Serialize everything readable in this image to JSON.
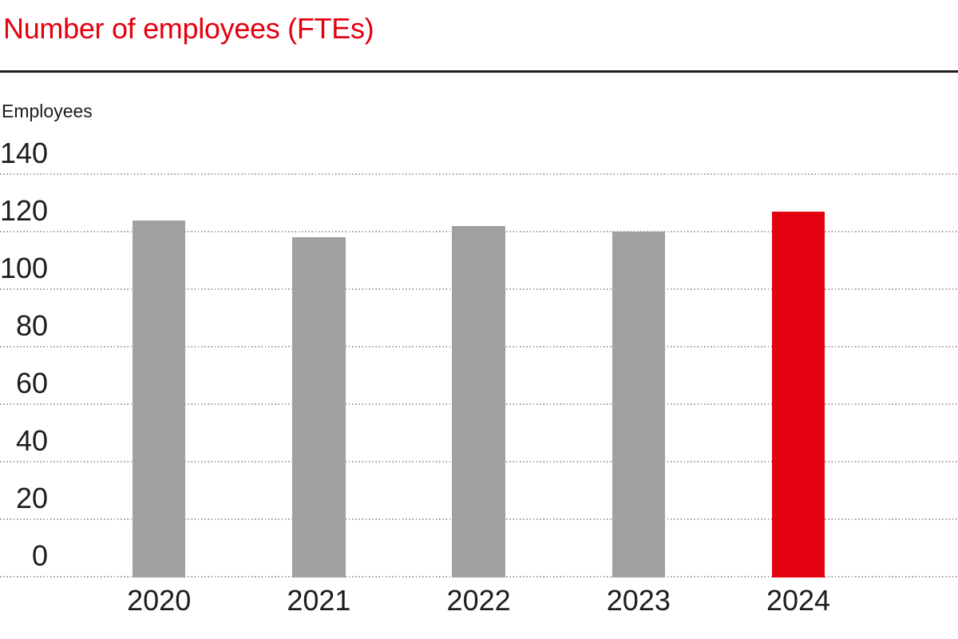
{
  "header": {
    "title": "Number of employees (FTEs)",
    "title_color": "#e3000f"
  },
  "colors": {
    "brand_red": "#e3000f",
    "bar_gray": "#a0a09e",
    "text_dark": "#1d1d1b",
    "separator_line": "#1d1d1b",
    "gridline_gray": "#9b9b9b",
    "background": "#ffffff"
  },
  "chart_data": {
    "type": "bar",
    "title": "Number of employees (FTEs)",
    "ylabel": "Employees",
    "xlabel": "",
    "categories": [
      "2020",
      "2021",
      "2022",
      "2023",
      "2024"
    ],
    "values": [
      124,
      118,
      122,
      120,
      127
    ],
    "bar_colors": [
      "#a0a09e",
      "#a0a09e",
      "#a0a09e",
      "#a0a09e",
      "#e3000f"
    ],
    "highlight_category": "2024",
    "ylim": [
      0,
      140
    ],
    "yticks": [
      0,
      20,
      40,
      60,
      80,
      100,
      120,
      140
    ],
    "grid": "horizontal dotted",
    "legend": "none",
    "data_labels": "none"
  }
}
